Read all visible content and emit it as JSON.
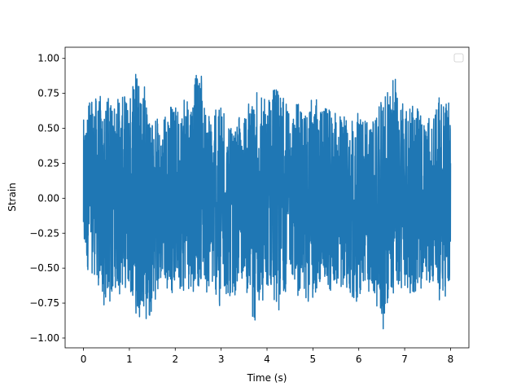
{
  "chart_data": {
    "type": "line",
    "title": "",
    "xlabel": "Time (s)",
    "ylabel": "Strain",
    "xlim": [
      -0.4,
      8.4
    ],
    "ylim": [
      -1.07,
      1.08
    ],
    "xticks": [
      0,
      1,
      2,
      3,
      4,
      5,
      6,
      7,
      8
    ],
    "xtick_labels": [
      "0",
      "1",
      "2",
      "3",
      "4",
      "5",
      "6",
      "7",
      "8"
    ],
    "yticks": [
      -1.0,
      -0.75,
      -0.5,
      -0.25,
      0.0,
      0.25,
      0.5,
      0.75,
      1.0
    ],
    "ytick_labels": [
      "−1.00",
      "−0.75",
      "−0.50",
      "−0.25",
      "0.00",
      "0.25",
      "0.50",
      "0.75",
      "1.00"
    ],
    "grid": false,
    "legend": {
      "location": "upper right",
      "entries": []
    },
    "series": [
      {
        "color": "#1f77b4",
        "x_range": [
          0,
          8
        ],
        "envelope": {
          "x": [
            0,
            0.25,
            0.5,
            0.75,
            1.0,
            1.25,
            1.5,
            1.75,
            2.0,
            2.25,
            2.5,
            2.75,
            3.0,
            3.25,
            3.5,
            3.75,
            4.0,
            4.25,
            4.5,
            4.75,
            5.0,
            5.25,
            5.5,
            5.75,
            6.0,
            6.25,
            6.5,
            6.75,
            7.0,
            7.25,
            7.5,
            7.75,
            8.0
          ],
          "y_max": [
            0.62,
            0.81,
            0.72,
            0.78,
            0.83,
            0.95,
            0.55,
            0.6,
            0.72,
            0.8,
            1.0,
            0.6,
            0.68,
            0.52,
            0.65,
            0.78,
            0.7,
            0.88,
            0.65,
            0.7,
            0.75,
            0.72,
            0.68,
            0.6,
            0.62,
            0.55,
            0.73,
            0.9,
            0.7,
            0.73,
            0.55,
            0.72,
            0.68
          ],
          "y_min": [
            -0.55,
            -0.63,
            -0.8,
            -0.7,
            -0.75,
            -0.9,
            -0.85,
            -0.63,
            -0.7,
            -0.75,
            -0.65,
            -0.68,
            -0.86,
            -0.72,
            -0.6,
            -0.98,
            -0.7,
            -0.88,
            -0.58,
            -0.78,
            -0.72,
            -0.7,
            -0.68,
            -0.65,
            -0.8,
            -0.65,
            -0.98,
            -0.72,
            -0.7,
            -0.68,
            -0.6,
            -0.73,
            -0.68
          ]
        }
      }
    ]
  }
}
